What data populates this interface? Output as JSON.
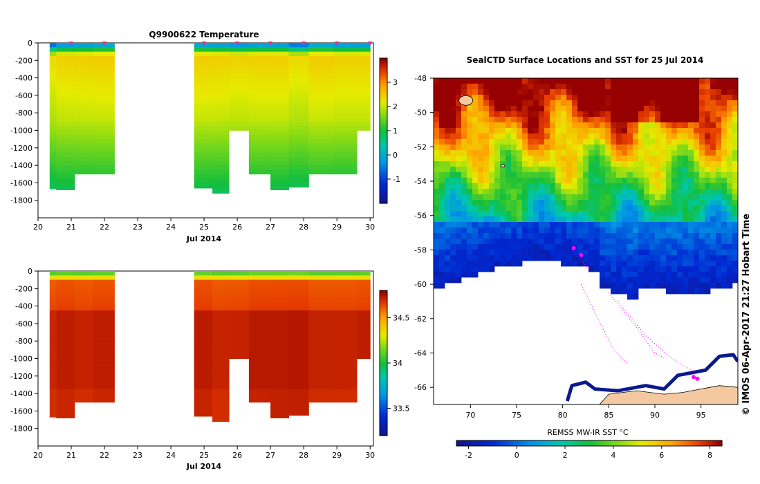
{
  "figure": {
    "copyright": "© IMOS 06-Apr-2017 21:27 Hobart Time"
  },
  "chart_data": [
    {
      "type": "heatmap",
      "title": "Q9900622  Temperature",
      "xlabel": "Jul 2014",
      "ylabel": "",
      "x_ticks": [
        "20",
        "21",
        "22",
        "23",
        "24",
        "25",
        "26",
        "27",
        "28",
        "29",
        "30"
      ],
      "y_ticks": [
        "0",
        "-200",
        "-400",
        "-600",
        "-800",
        "-1000",
        "-1200",
        "-1400",
        "-1600",
        "-1800"
      ],
      "xlim": [
        20,
        30.1
      ],
      "ylim": [
        -2000,
        0
      ],
      "colorbar_ticks": [
        "-1",
        "0",
        "1",
        "2",
        "3"
      ],
      "colorbar_range": [
        -2,
        4
      ],
      "profile_markers": [
        21,
        22,
        25,
        26,
        27,
        28,
        29,
        30
      ],
      "profiles": [
        {
          "day": 20.3,
          "max_depth": -1670
        },
        {
          "day": 20.8,
          "max_depth": -1680
        },
        {
          "day": 21.4,
          "max_depth": -1500
        },
        {
          "day": 21.9,
          "max_depth": -1500
        },
        {
          "day": 25.0,
          "max_depth": -1660
        },
        {
          "day": 25.5,
          "max_depth": -1720
        },
        {
          "day": 26.0,
          "max_depth": -1000
        },
        {
          "day": 26.7,
          "max_depth": -1500
        },
        {
          "day": 27.3,
          "max_depth": -1680
        },
        {
          "day": 27.8,
          "max_depth": -1650
        },
        {
          "day": 28.5,
          "max_depth": -1500
        },
        {
          "day": 29.3,
          "max_depth": -1500
        },
        {
          "day": 29.9,
          "max_depth": -1000
        }
      ]
    },
    {
      "type": "heatmap",
      "title": "",
      "xlabel": "Jul 2014",
      "ylabel": "",
      "x_ticks": [
        "20",
        "21",
        "22",
        "23",
        "24",
        "25",
        "26",
        "27",
        "28",
        "29",
        "30"
      ],
      "y_ticks": [
        "0",
        "-200",
        "-400",
        "-600",
        "-800",
        "-1000",
        "-1200",
        "-1400",
        "-1600",
        "-1800"
      ],
      "xlim": [
        20,
        30.1
      ],
      "ylim": [
        -2000,
        0
      ],
      "colorbar_ticks": [
        "33.5",
        "34",
        "34.5"
      ],
      "colorbar_range": [
        33.2,
        34.8
      ]
    },
    {
      "type": "heatmap",
      "title": "SealCTD Surface Locations and SST for 25 Jul 2014",
      "xlabel": "",
      "ylabel": "",
      "x_ticks": [
        "70",
        "75",
        "80",
        "85",
        "90",
        "95"
      ],
      "y_ticks": [
        "-48",
        "-50",
        "-52",
        "-54",
        "-56",
        "-58",
        "-60",
        "-62",
        "-64",
        "-66"
      ],
      "xlim": [
        66,
        99
      ],
      "ylim": [
        -67,
        -48
      ],
      "colorbar_label": "REMSS MW-IR SST °C",
      "colorbar_ticks": [
        "-2",
        "0",
        "2",
        "4",
        "6",
        "8"
      ],
      "colorbar_range": [
        -2.5,
        8.5
      ],
      "land_color": "#f5c9a0",
      "track_color": "#ff00ff"
    }
  ]
}
